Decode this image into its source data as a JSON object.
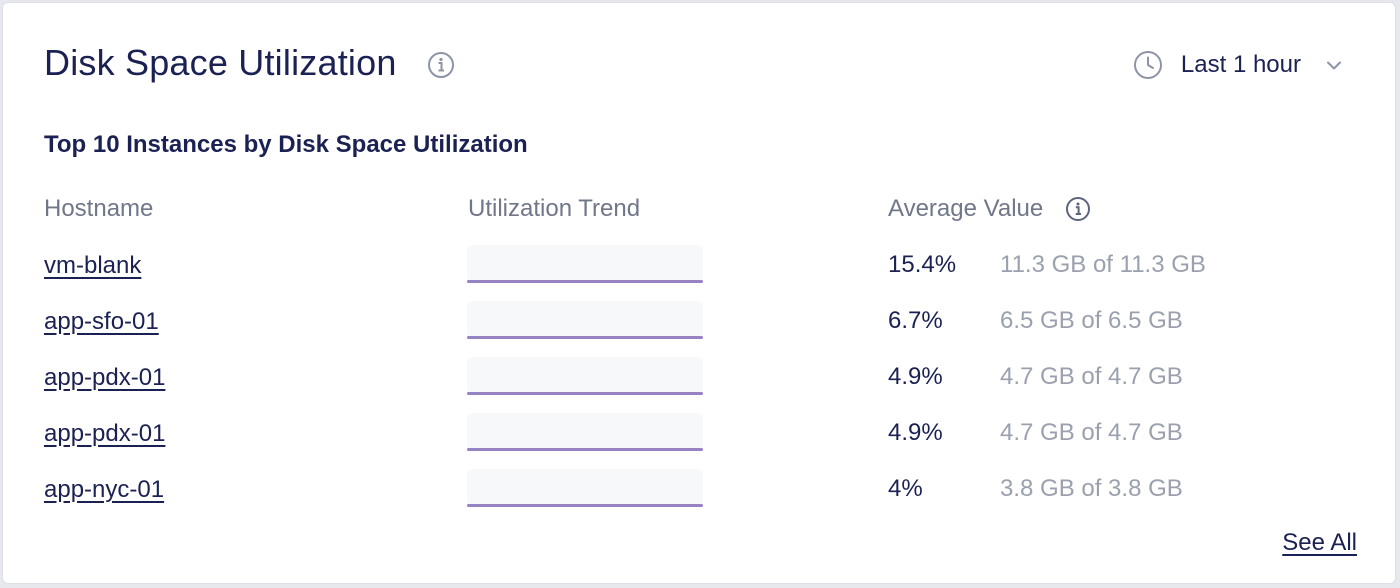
{
  "header": {
    "title": "Disk Space Utilization",
    "info_icon": "info-icon",
    "time_range": {
      "icon": "clock-icon",
      "label": "Last 1 hour",
      "dropdown_icon": "chevron-down-icon"
    }
  },
  "subtitle": "Top 10 Instances by Disk Space Utilization",
  "table": {
    "columns": {
      "hostname": "Hostname",
      "trend": "Utilization Trend",
      "average": "Average Value"
    },
    "rows": [
      {
        "hostname": "vm-blank",
        "average": "15.4%",
        "capacity": "11.3 GB of 11.3 GB"
      },
      {
        "hostname": "app-sfo-01",
        "average": "6.7%",
        "capacity": "6.5 GB of 6.5 GB"
      },
      {
        "hostname": "app-pdx-01",
        "average": "4.9%",
        "capacity": "4.7 GB of 4.7 GB"
      },
      {
        "hostname": "app-pdx-01",
        "average": "4.9%",
        "capacity": "4.7 GB of 4.7 GB"
      },
      {
        "hostname": "app-nyc-01",
        "average": "4%",
        "capacity": "3.8 GB of 3.8 GB"
      }
    ]
  },
  "footer": {
    "see_all": "See All"
  },
  "colors": {
    "text_primary": "#1b2152",
    "text_secondary": "#707789",
    "text_muted": "#9aa0ae",
    "sparkline": "#9783c3"
  }
}
